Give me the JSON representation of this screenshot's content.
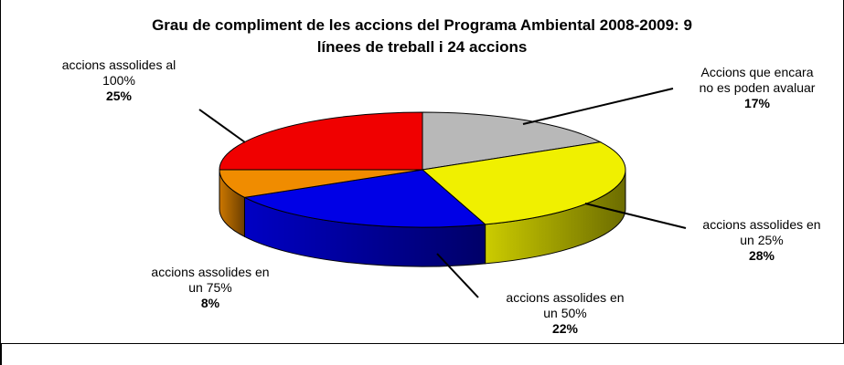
{
  "chart_data": {
    "type": "pie",
    "title_line1": "Grau de compliment de les accions del Programa Ambiental 2008-2009: 9",
    "title_line2": "línees de treball i 24 accions",
    "slices": [
      {
        "label_line1": "Accions que encara",
        "label_line2": "no es poden avaluar",
        "percent_label": "17%",
        "value": 17,
        "color": "#B8B8B8"
      },
      {
        "label_line1": "accions assolides en",
        "label_line2": "un 25%",
        "percent_label": "28%",
        "value": 28,
        "color": "#F0F000"
      },
      {
        "label_line1": "accions assolides en",
        "label_line2": "un 50%",
        "percent_label": "22%",
        "value": 22,
        "color": "#0000E6"
      },
      {
        "label_line1": "accions assolides en",
        "label_line2": "un 75%",
        "percent_label": "8%",
        "value": 8,
        "color": "#F08C00"
      },
      {
        "label_line1": "accions assolides al",
        "label_line2": "100%",
        "percent_label": "25%",
        "value": 25,
        "color": "#F00000"
      }
    ]
  }
}
